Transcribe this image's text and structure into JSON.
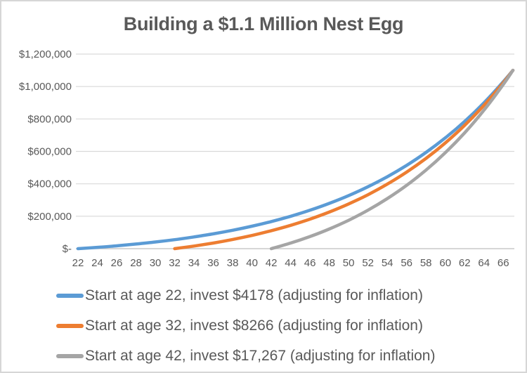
{
  "chart": {
    "title": "Building a $1.1 Million Nest Egg",
    "colors": {
      "title_text": "#595959",
      "axis_text": "#595959",
      "legend_text": "#595959",
      "gridline": "#d9d9d9",
      "axis_line": "#c9c9c9",
      "frame_border": "#d6d6d6",
      "background": "#ffffff"
    }
  },
  "chart_data": {
    "type": "line",
    "title": "Building a $1.1 Million Nest Egg",
    "xlabel": "",
    "ylabel": "",
    "xlim": [
      22,
      67
    ],
    "ylim": [
      0,
      1200000
    ],
    "grid": true,
    "legend_position": "bottom-left",
    "x_ticks": [
      22,
      24,
      26,
      28,
      30,
      32,
      34,
      36,
      38,
      40,
      42,
      44,
      46,
      48,
      50,
      52,
      54,
      56,
      58,
      60,
      62,
      64,
      66
    ],
    "y_ticks": [
      {
        "label": "$-",
        "value": 0
      },
      {
        "label": "$200,000",
        "value": 200000
      },
      {
        "label": "$400,000",
        "value": 400000
      },
      {
        "label": "$600,000",
        "value": 600000
      },
      {
        "label": "$800,000",
        "value": 800000
      },
      {
        "label": "$1,000,000",
        "value": 1000000
      },
      {
        "label": "$1,200,000",
        "value": 1200000
      }
    ],
    "series": [
      {
        "id": "start-at-age-22",
        "name": "Start at age 22, invest $4178 (adjusting for inflation)",
        "color": "#5B9BD5",
        "x": [
          22,
          24,
          26,
          28,
          30,
          32,
          34,
          36,
          38,
          40,
          42,
          44,
          46,
          48,
          50,
          52,
          54,
          56,
          58,
          60,
          62,
          64,
          66,
          67
        ],
        "y": [
          0,
          8100,
          17500,
          28400,
          41000,
          55600,
          72300,
          91500,
          113400,
          138500,
          167200,
          199900,
          237000,
          279400,
          327400,
          381900,
          443800,
          513900,
          593300,
          683100,
          784600,
          899500,
          1029200,
          1100000
        ]
      },
      {
        "id": "start-at-age-32",
        "name": "Start at age 32, invest $8266 (adjusting for inflation)",
        "color": "#ED7D31",
        "x": [
          32,
          34,
          36,
          38,
          40,
          42,
          44,
          46,
          48,
          50,
          52,
          54,
          56,
          58,
          60,
          62,
          64,
          66,
          67
        ],
        "y": [
          0,
          16100,
          34800,
          56600,
          81600,
          110700,
          143900,
          182100,
          225900,
          275800,
          332900,
          398000,
          472100,
          556300,
          652000,
          760500,
          883700,
          1023300,
          1100000
        ]
      },
      {
        "id": "start-at-age-42",
        "name": "Start at age 42, invest $17,267 (adjusting for inflation)",
        "color": "#A5A5A5",
        "x": [
          42,
          44,
          46,
          48,
          50,
          52,
          54,
          56,
          58,
          60,
          62,
          64,
          66,
          67
        ],
        "y": [
          0,
          34500,
          74700,
          121300,
          175100,
          237300,
          308700,
          390700,
          484400,
          591600,
          714100,
          853700,
          1012500,
          1100000
        ]
      }
    ]
  }
}
